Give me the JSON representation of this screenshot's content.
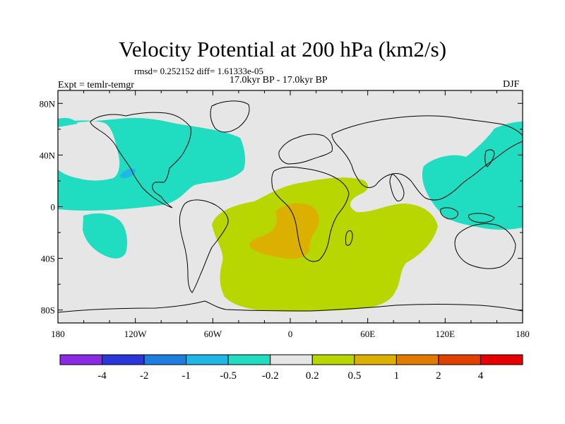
{
  "title": "Velocity Potential at 200 hPa (km2/s)",
  "stats": "rmsd= 0.252152 diff= 1.61333e-05",
  "period": "17.0kyr BP - 17.0kyr BP",
  "experiment": "Expt = temlr-temgr",
  "season": "DJF",
  "map": {
    "projection": "cylindrical-equidistant",
    "lon_range": [
      -180,
      180
    ],
    "lat_range": [
      -90,
      90
    ],
    "x_ticks": [
      "180",
      "120W",
      "60W",
      "0",
      "60E",
      "120E",
      "180"
    ],
    "y_ticks": [
      "80N",
      "40N",
      "0",
      "40S",
      "80S"
    ],
    "background_color": "#e6e6e6",
    "coastline_color": "#000000"
  },
  "colorbar": {
    "colors": [
      "#8a2be2",
      "#2a36d6",
      "#1e7ee0",
      "#1fb8e6",
      "#20dcc0",
      "#e6e6e6",
      "#b8d600",
      "#dcb000",
      "#e07a00",
      "#e04000",
      "#e60000"
    ],
    "labels": [
      "-4",
      "-2",
      "-1",
      "-0.5",
      "-0.2",
      "0.2",
      "0.5",
      "1",
      "2",
      "4"
    ]
  },
  "regions": [
    {
      "name": "negative-north-pacific-atlantic",
      "class": "-0.5 to -0.2",
      "color": "#20dcc0"
    },
    {
      "name": "negative-south-pacific",
      "class": "-0.5 to -0.2",
      "color": "#20dcc0"
    },
    {
      "name": "negative-west-pacific-asia",
      "class": "-0.5 to -0.2",
      "color": "#20dcc0"
    },
    {
      "name": "negative-arctic-east",
      "class": "-0.5 to -0.2",
      "color": "#20dcc0"
    },
    {
      "name": "negative-core-east-pacific",
      "class": "-1 to -0.5",
      "color": "#1fb8e6"
    },
    {
      "name": "positive-south-atlantic-indian",
      "class": "0.2 to 0.5",
      "color": "#b8d600"
    },
    {
      "name": "positive-core-south-atlantic",
      "class": "0.5 to 1",
      "color": "#dcb000"
    }
  ]
}
